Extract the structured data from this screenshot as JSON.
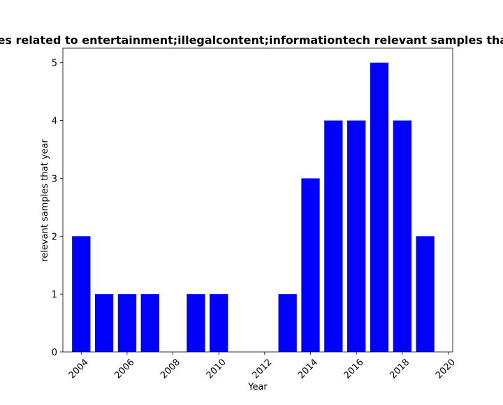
{
  "chart_data": {
    "type": "bar",
    "title": "Samples related to entertainment;illegalcontent;informationtech relevant samples that year",
    "xlabel": "Year",
    "ylabel": "relevant samples that year",
    "x": [
      2004,
      2005,
      2006,
      2007,
      2009,
      2010,
      2013,
      2014,
      2015,
      2016,
      2017,
      2018,
      2019
    ],
    "values": [
      2,
      1,
      1,
      1,
      1,
      1,
      1,
      3,
      4,
      4,
      5,
      4,
      2
    ],
    "xlim": [
      2003.2,
      2020.2
    ],
    "ylim": [
      0,
      5.25
    ],
    "xticks": [
      2004,
      2006,
      2008,
      2010,
      2012,
      2014,
      2016,
      2018,
      2020
    ],
    "yticks": [
      0,
      1,
      2,
      3,
      4,
      5
    ],
    "bar_color": "#0000ff",
    "grid": false,
    "legend": "none"
  }
}
